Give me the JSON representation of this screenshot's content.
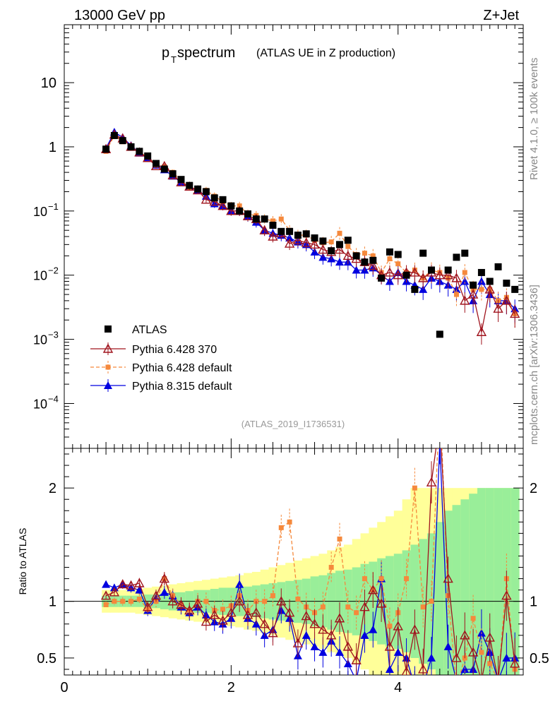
{
  "header": {
    "left": "13000 GeV pp",
    "right": "Z+Jet"
  },
  "side": {
    "rivet": "Rivet 4.1.0, ≥ 100k events",
    "mcplots": "mcplots.cern.ch [arXiv:1306.3436]"
  },
  "chart_data": [
    {
      "type": "scatter",
      "title_main": "p",
      "title_sub": "T",
      "title_rest": " spectrum",
      "title_paren": "(ATLAS UE in Z production)",
      "watermark": "(ATLAS_2019_I1736531)",
      "yscale": "log",
      "ylim": [
        2e-05,
        80
      ],
      "xlim": [
        0,
        5.5
      ],
      "ytick_labels": [
        {
          "value": 10,
          "mant": "10",
          "exp": ""
        },
        {
          "value": 1,
          "mant": "1",
          "exp": ""
        },
        {
          "value": 0.1,
          "mant": "10",
          "exp": "−1"
        },
        {
          "value": 0.01,
          "mant": "10",
          "exp": "−2"
        },
        {
          "value": 0.001,
          "mant": "10",
          "exp": "−3"
        },
        {
          "value": 0.0001,
          "mant": "10",
          "exp": "−4"
        }
      ],
      "legend": [
        {
          "name": "ATLAS",
          "style": "data"
        },
        {
          "name": "Pythia 6.428 370",
          "style": "p370"
        },
        {
          "name": "Pythia 6.428 default",
          "style": "p6def"
        },
        {
          "name": "Pythia 8.315 default",
          "style": "p8"
        }
      ],
      "x": [
        0.5,
        0.6,
        0.7,
        0.8,
        0.9,
        1.0,
        1.1,
        1.2,
        1.3,
        1.4,
        1.5,
        1.6,
        1.7,
        1.8,
        1.9,
        2.0,
        2.1,
        2.2,
        2.3,
        2.4,
        2.5,
        2.6,
        2.7,
        2.8,
        2.9,
        3.0,
        3.1,
        3.2,
        3.3,
        3.4,
        3.5,
        3.6,
        3.7,
        3.8,
        3.9,
        4.0,
        4.1,
        4.2,
        4.3,
        4.4,
        4.5,
        4.6,
        4.7,
        4.8,
        4.9,
        5.0,
        5.1,
        5.2,
        5.3,
        5.4
      ],
      "series": [
        {
          "name": "ATLAS",
          "values": [
            0.92,
            1.5,
            1.25,
            1.0,
            0.85,
            0.72,
            0.55,
            0.45,
            0.38,
            0.31,
            0.25,
            0.22,
            0.2,
            0.16,
            0.15,
            0.12,
            0.1,
            0.09,
            0.075,
            0.075,
            0.06,
            0.048,
            0.048,
            0.042,
            0.044,
            0.038,
            0.034,
            0.024,
            0.03,
            0.035,
            0.02,
            0.016,
            0.017,
            0.009,
            0.023,
            0.021,
            0.01,
            0.006,
            0.022,
            0.012,
            0.0012,
            0.012,
            0.019,
            0.022,
            0.007,
            0.011,
            0.008,
            0.0135,
            0.0075,
            0.006
          ]
        },
        {
          "name": "Pythia 6.428 370",
          "values": [
            0.92,
            1.55,
            1.35,
            1.0,
            0.82,
            0.67,
            0.5,
            0.5,
            0.36,
            0.28,
            0.24,
            0.21,
            0.15,
            0.14,
            0.12,
            0.1,
            0.1,
            0.083,
            0.075,
            0.05,
            0.04,
            0.045,
            0.031,
            0.035,
            0.032,
            0.03,
            0.025,
            0.023,
            0.025,
            0.02,
            0.018,
            0.016,
            0.014,
            0.01,
            0.011,
            0.01,
            0.011,
            0.011,
            0.009,
            0.011,
            0.01,
            0.01,
            0.009,
            0.004,
            0.005,
            0.0013,
            0.006,
            0.003,
            0.004,
            0.0025
          ]
        },
        {
          "name": "Pythia 6.428 default",
          "values": [
            0.85,
            1.5,
            1.2,
            1.0,
            0.82,
            0.7,
            0.52,
            0.49,
            0.4,
            0.3,
            0.23,
            0.22,
            0.21,
            0.17,
            0.14,
            0.12,
            0.12,
            0.09,
            0.085,
            0.075,
            0.07,
            0.075,
            0.05,
            0.042,
            0.042,
            0.035,
            0.032,
            0.033,
            0.045,
            0.028,
            0.021,
            0.022,
            0.02,
            0.011,
            0.018,
            0.015,
            0.011,
            0.012,
            0.009,
            0.012,
            0.011,
            0.009,
            0.005,
            0.011,
            0.006,
            0.006,
            0.006,
            0.004,
            0.0045,
            0.0025
          ]
        },
        {
          "name": "Pythia 8.315 default",
          "values": [
            0.95,
            1.7,
            1.4,
            1.05,
            0.8,
            0.66,
            0.52,
            0.44,
            0.35,
            0.28,
            0.24,
            0.21,
            0.17,
            0.13,
            0.12,
            0.1,
            0.1,
            0.082,
            0.067,
            0.05,
            0.045,
            0.042,
            0.038,
            0.033,
            0.03,
            0.023,
            0.019,
            0.018,
            0.016,
            0.016,
            0.012,
            0.012,
            0.013,
            0.01,
            0.008,
            0.011,
            0.008,
            0.007,
            0.006,
            0.009,
            0.008,
            0.007,
            0.006,
            0.008,
            0.004,
            0.008,
            0.005,
            0.004,
            0.004,
            0.003
          ]
        }
      ]
    },
    {
      "type": "line",
      "ylabel": "Ratio to ATLAS",
      "ylim": [
        0.35,
        2.35
      ],
      "xlim": [
        0,
        5.5
      ],
      "yticks": [
        0.5,
        1,
        2
      ],
      "ytick_labels": [
        "0.5",
        "1",
        "2"
      ],
      "xticks": [
        0,
        2,
        4
      ],
      "xtick_labels": [
        "0",
        "2",
        "4"
      ],
      "x": [
        0.5,
        0.6,
        0.7,
        0.8,
        0.9,
        1.0,
        1.1,
        1.2,
        1.3,
        1.4,
        1.5,
        1.6,
        1.7,
        1.8,
        1.9,
        2.0,
        2.1,
        2.2,
        2.3,
        2.4,
        2.5,
        2.6,
        2.7,
        2.8,
        2.9,
        3.0,
        3.1,
        3.2,
        3.3,
        3.4,
        3.5,
        3.6,
        3.7,
        3.8,
        3.9,
        4.0,
        4.1,
        4.2,
        4.3,
        4.4,
        4.5,
        4.6,
        4.7,
        4.8,
        4.9,
        5.0,
        5.1,
        5.2,
        5.3,
        5.4
      ],
      "band_green": [
        0.05,
        0.05,
        0.05,
        0.05,
        0.05,
        0.06,
        0.06,
        0.07,
        0.08,
        0.08,
        0.09,
        0.1,
        0.1,
        0.11,
        0.12,
        0.12,
        0.13,
        0.13,
        0.14,
        0.15,
        0.16,
        0.17,
        0.18,
        0.19,
        0.2,
        0.22,
        0.23,
        0.25,
        0.27,
        0.28,
        0.3,
        0.33,
        0.35,
        0.38,
        0.4,
        0.42,
        0.45,
        0.5,
        0.55,
        0.6,
        0.7,
        0.8,
        0.85,
        0.9,
        0.95,
        1.0,
        1.0,
        1.0,
        1.0,
        1.0
      ],
      "band_yellow": [
        0.1,
        0.1,
        0.1,
        0.1,
        0.11,
        0.12,
        0.13,
        0.14,
        0.15,
        0.16,
        0.17,
        0.18,
        0.19,
        0.2,
        0.21,
        0.22,
        0.23,
        0.25,
        0.26,
        0.28,
        0.3,
        0.32,
        0.34,
        0.36,
        0.38,
        0.4,
        0.42,
        0.45,
        0.48,
        0.5,
        0.55,
        0.6,
        0.65,
        0.7,
        0.75,
        0.8,
        0.9,
        1.0,
        1.0,
        1.0,
        1.0,
        1.0,
        1.0,
        1.0,
        1.0,
        1.0,
        1.0,
        1.0,
        1.0,
        1.0
      ],
      "series": [
        {
          "name": "Pythia 6.428 370",
          "values": [
            1.05,
            1.08,
            1.15,
            1.14,
            1.16,
            0.95,
            1.05,
            1.2,
            1.0,
            0.97,
            0.92,
            0.98,
            0.82,
            0.88,
            0.83,
            0.9,
            1.0,
            0.88,
            0.9,
            0.8,
            0.72,
            1.0,
            0.9,
            0.63,
            0.87,
            0.8,
            0.75,
            0.7,
            0.85,
            0.6,
            0.48,
            0.95,
            1.1,
            0.98,
            0.6,
            0.78,
            0.38,
            0.75,
            0.4,
            2.05,
            2.6,
            1.2,
            0.5,
            0.7,
            0.55,
            0.3,
            0.68,
            0.3,
            1.05,
            0.45
          ]
        },
        {
          "name": "Pythia 6.428 default",
          "values": [
            0.97,
            1.0,
            1.0,
            1.0,
            1.02,
            0.93,
            1.0,
            1.2,
            1.05,
            0.97,
            0.92,
            1.0,
            1.0,
            0.92,
            0.93,
            0.96,
            1.05,
            0.92,
            1.0,
            1.0,
            1.05,
            1.65,
            1.7,
            1.02,
            0.95,
            0.9,
            0.95,
            1.3,
            1.55,
            0.95,
            0.9,
            1.2,
            1.1,
            1.2,
            0.78,
            0.9,
            1.2,
            2.0,
            0.95,
            1.0,
            2.8,
            1.05,
            0.25,
            0.5,
            0.85,
            0.55,
            0.45,
            0.3,
            1.2,
            0.4
          ]
        },
        {
          "name": "Pythia 8.315 default",
          "values": [
            1.15,
            1.12,
            1.15,
            1.12,
            1.1,
            0.92,
            1.03,
            1.08,
            1.05,
            0.95,
            0.9,
            0.95,
            0.88,
            0.82,
            0.8,
            0.85,
            1.15,
            0.85,
            0.8,
            0.7,
            0.75,
            0.92,
            0.85,
            0.52,
            0.7,
            0.6,
            0.55,
            0.65,
            0.55,
            0.45,
            0.3,
            0.7,
            0.75,
            1.2,
            0.4,
            0.55,
            0.5,
            0.25,
            0.25,
            0.5,
            2.4,
            0.6,
            0.3,
            0.4,
            0.4,
            0.72,
            0.55,
            0.3,
            0.5,
            0.5
          ]
        }
      ]
    }
  ]
}
